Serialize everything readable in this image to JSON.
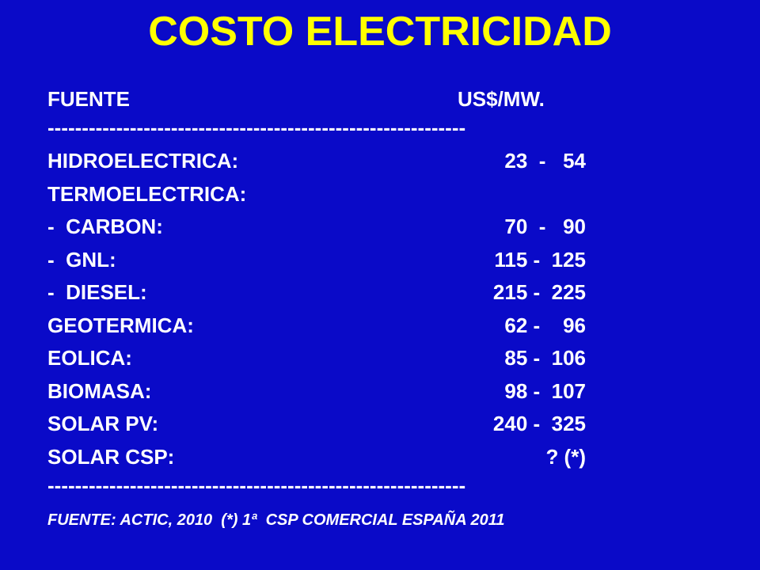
{
  "title": "COSTO ELECTRICIDAD",
  "header": {
    "source": "FUENTE",
    "unit": "US$/MW."
  },
  "separator": "-------------------------------------------------------------",
  "rows": [
    {
      "label": "HIDROELECTRICA:",
      "range": "23  -   54"
    },
    {
      "label": "TERMOELECTRICA:",
      "range": ""
    },
    {
      "label": "-  CARBON:",
      "range": "70  -   90"
    },
    {
      "label": "-  GNL:",
      "range": "115 -  125"
    },
    {
      "label": "-  DIESEL:",
      "range": "215 -  225"
    },
    {
      "label": "GEOTERMICA:",
      "range": "62 -    96"
    },
    {
      "label": "EOLICA:",
      "range": "85 -  106"
    },
    {
      "label": "BIOMASA:",
      "range": "98 -  107"
    },
    {
      "label": "SOLAR PV:",
      "range": "240 -  325"
    },
    {
      "label": "SOLAR CSP:",
      "range": "? (*)"
    }
  ],
  "footer": "FUENTE: ACTIC, 2010  (*) 1ª  CSP COMERCIAL ESPAÑA 2011"
}
